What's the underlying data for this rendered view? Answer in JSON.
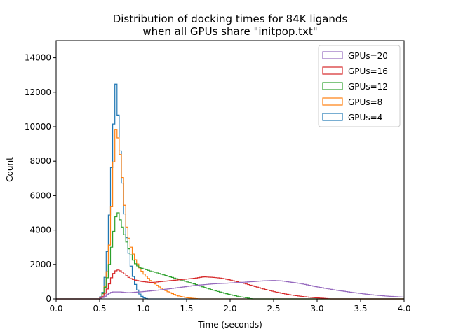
{
  "chart_data": {
    "type": "histogram",
    "title": "Distribution of docking times for 84K ligands",
    "subtitle": "when all GPUs share \"initpop.txt\"",
    "xlabel": "Time (seconds)",
    "ylabel": "Count",
    "xlim": [
      0.0,
      4.0
    ],
    "ylim": [
      0,
      15000
    ],
    "xticks": [
      0.0,
      0.5,
      1.0,
      1.5,
      2.0,
      2.5,
      3.0,
      3.5,
      4.0
    ],
    "xtick_labels": [
      "0.0",
      "0.5",
      "1.0",
      "1.5",
      "2.0",
      "2.5",
      "3.0",
      "3.5",
      "4.0"
    ],
    "yticks": [
      0,
      2000,
      4000,
      6000,
      8000,
      10000,
      12000,
      14000
    ],
    "ytick_labels": [
      "0",
      "2000",
      "4000",
      "6000",
      "8000",
      "10000",
      "12000",
      "14000"
    ],
    "grid": false,
    "legend": "upper-right",
    "histtype": "step",
    "series": [
      {
        "name": "GPUs=20",
        "color": "#9467bd",
        "points": [
          [
            0.0,
            0
          ],
          [
            0.5,
            0
          ],
          [
            0.55,
            100
          ],
          [
            0.6,
            300
          ],
          [
            0.65,
            400
          ],
          [
            0.7,
            400
          ],
          [
            0.75,
            400
          ],
          [
            0.8,
            370
          ],
          [
            0.85,
            360
          ],
          [
            0.9,
            380
          ],
          [
            1.0,
            420
          ],
          [
            1.2,
            520
          ],
          [
            1.4,
            650
          ],
          [
            1.6,
            780
          ],
          [
            1.8,
            870
          ],
          [
            2.0,
            920
          ],
          [
            2.2,
            980
          ],
          [
            2.4,
            1050
          ],
          [
            2.5,
            1070
          ],
          [
            2.6,
            1040
          ],
          [
            2.8,
            900
          ],
          [
            3.0,
            700
          ],
          [
            3.2,
            520
          ],
          [
            3.4,
            380
          ],
          [
            3.6,
            250
          ],
          [
            3.8,
            160
          ],
          [
            4.0,
            100
          ]
        ]
      },
      {
        "name": "GPUs=16",
        "color": "#d62728",
        "points": [
          [
            0.0,
            0
          ],
          [
            0.5,
            0
          ],
          [
            0.55,
            200
          ],
          [
            0.6,
            700
          ],
          [
            0.65,
            1400
          ],
          [
            0.7,
            1700
          ],
          [
            0.75,
            1600
          ],
          [
            0.8,
            1400
          ],
          [
            0.85,
            1200
          ],
          [
            0.9,
            1100
          ],
          [
            1.0,
            1000
          ],
          [
            1.1,
            950
          ],
          [
            1.2,
            1000
          ],
          [
            1.3,
            1050
          ],
          [
            1.4,
            1100
          ],
          [
            1.5,
            1150
          ],
          [
            1.6,
            1200
          ],
          [
            1.7,
            1280
          ],
          [
            1.8,
            1250
          ],
          [
            1.9,
            1200
          ],
          [
            2.0,
            1100
          ],
          [
            2.1,
            980
          ],
          [
            2.2,
            850
          ],
          [
            2.3,
            700
          ],
          [
            2.4,
            560
          ],
          [
            2.5,
            430
          ],
          [
            2.6,
            320
          ],
          [
            2.7,
            230
          ],
          [
            2.8,
            160
          ],
          [
            2.9,
            100
          ],
          [
            3.0,
            60
          ],
          [
            3.1,
            30
          ],
          [
            3.15,
            0
          ]
        ]
      },
      {
        "name": "GPUs=12",
        "color": "#2ca02c",
        "points": [
          [
            0.0,
            0
          ],
          [
            0.5,
            0
          ],
          [
            0.55,
            400
          ],
          [
            0.6,
            1500
          ],
          [
            0.65,
            3500
          ],
          [
            0.7,
            5200
          ],
          [
            0.75,
            4400
          ],
          [
            0.8,
            3500
          ],
          [
            0.85,
            2700
          ],
          [
            0.9,
            2100
          ],
          [
            0.95,
            1850
          ],
          [
            1.0,
            1750
          ],
          [
            1.1,
            1600
          ],
          [
            1.2,
            1450
          ],
          [
            1.3,
            1300
          ],
          [
            1.4,
            1150
          ],
          [
            1.5,
            1000
          ],
          [
            1.6,
            850
          ],
          [
            1.7,
            680
          ],
          [
            1.8,
            520
          ],
          [
            1.9,
            380
          ],
          [
            2.0,
            250
          ],
          [
            2.1,
            140
          ],
          [
            2.2,
            60
          ],
          [
            2.25,
            0
          ]
        ]
      },
      {
        "name": "GPUs=8",
        "color": "#ff7f0e",
        "points": [
          [
            0.0,
            0
          ],
          [
            0.5,
            0
          ],
          [
            0.55,
            300
          ],
          [
            0.6,
            2000
          ],
          [
            0.65,
            6500
          ],
          [
            0.68,
            10000
          ],
          [
            0.72,
            9200
          ],
          [
            0.75,
            7800
          ],
          [
            0.78,
            6000
          ],
          [
            0.8,
            4500
          ],
          [
            0.85,
            3200
          ],
          [
            0.9,
            2400
          ],
          [
            0.95,
            1900
          ],
          [
            1.0,
            1500
          ],
          [
            1.1,
            1000
          ],
          [
            1.2,
            650
          ],
          [
            1.3,
            380
          ],
          [
            1.4,
            180
          ],
          [
            1.5,
            70
          ],
          [
            1.6,
            20
          ],
          [
            1.65,
            0
          ]
        ]
      },
      {
        "name": "GPUs=4",
        "color": "#1f77b4",
        "points": [
          [
            0.0,
            0
          ],
          [
            0.5,
            0
          ],
          [
            0.55,
            500
          ],
          [
            0.6,
            3500
          ],
          [
            0.65,
            9000
          ],
          [
            0.69,
            12700
          ],
          [
            0.72,
            10000
          ],
          [
            0.75,
            7600
          ],
          [
            0.78,
            5500
          ],
          [
            0.8,
            4000
          ],
          [
            0.85,
            2200
          ],
          [
            0.9,
            1000
          ],
          [
            0.95,
            350
          ],
          [
            1.0,
            80
          ],
          [
            1.05,
            0
          ]
        ]
      }
    ]
  }
}
